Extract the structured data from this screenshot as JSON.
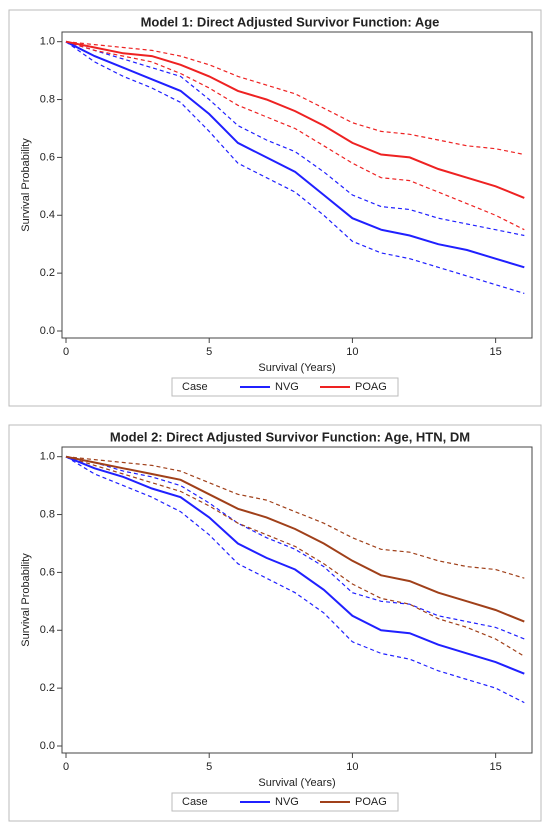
{
  "chart_data": [
    {
      "type": "line",
      "title": "Model 1: Direct Adjusted Survivor Function: Age",
      "x_label": "Survival (Years)",
      "y_label": "Survival Probability",
      "legend_title": "Case",
      "x": [
        0,
        1,
        2,
        3,
        4,
        5,
        6,
        7,
        8,
        9,
        10,
        11,
        12,
        13,
        14,
        15,
        16
      ],
      "xlim": [
        0,
        16.2
      ],
      "xticks": [
        0,
        5,
        10,
        15
      ],
      "ylim": [
        0,
        1.03
      ],
      "yticks": [
        {
          "value": 0,
          "label": "0.0"
        },
        0.2,
        0.4,
        0.6,
        0.8,
        {
          "value": 1,
          "label": "1.0"
        }
      ],
      "series": [
        {
          "color": "#2020ff",
          "dashed": true,
          "values": [
            1.0,
            0.97,
            0.94,
            0.91,
            0.88,
            0.8,
            0.71,
            0.66,
            0.62,
            0.55,
            0.47,
            0.43,
            0.42,
            0.39,
            0.37,
            0.35,
            0.33
          ]
        },
        {
          "color": "#2020ff",
          "dashed": true,
          "values": [
            1.0,
            0.93,
            0.88,
            0.84,
            0.79,
            0.69,
            0.58,
            0.53,
            0.48,
            0.4,
            0.31,
            0.27,
            0.25,
            0.22,
            0.19,
            0.16,
            0.13
          ]
        },
        {
          "color": "#ee2222",
          "dashed": true,
          "values": [
            1.0,
            0.99,
            0.98,
            0.97,
            0.95,
            0.92,
            0.88,
            0.85,
            0.82,
            0.77,
            0.72,
            0.69,
            0.68,
            0.66,
            0.64,
            0.63,
            0.61
          ]
        },
        {
          "color": "#ee2222",
          "dashed": true,
          "values": [
            1.0,
            0.97,
            0.95,
            0.93,
            0.89,
            0.84,
            0.78,
            0.74,
            0.7,
            0.64,
            0.58,
            0.53,
            0.52,
            0.48,
            0.44,
            0.4,
            0.35
          ]
        },
        {
          "name": "NVG",
          "color": "#2020ff",
          "values": [
            1.0,
            0.95,
            0.91,
            0.87,
            0.83,
            0.75,
            0.65,
            0.6,
            0.55,
            0.47,
            0.39,
            0.35,
            0.33,
            0.3,
            0.28,
            0.25,
            0.22
          ]
        },
        {
          "name": "POAG",
          "color": "#ee2222",
          "values": [
            1.0,
            0.98,
            0.96,
            0.95,
            0.92,
            0.88,
            0.83,
            0.8,
            0.76,
            0.71,
            0.65,
            0.61,
            0.6,
            0.56,
            0.53,
            0.5,
            0.46
          ]
        }
      ]
    },
    {
      "type": "line",
      "title": "Model 2: Direct Adjusted Survivor Function: Age, HTN, DM",
      "x_label": "Survival (Years)",
      "y_label": "Survival Probability",
      "legend_title": "Case",
      "x": [
        0,
        1,
        2,
        3,
        4,
        5,
        6,
        7,
        8,
        9,
        10,
        11,
        12,
        13,
        14,
        15,
        16
      ],
      "xlim": [
        0,
        16.2
      ],
      "xticks": [
        0,
        5,
        10,
        15
      ],
      "ylim": [
        0,
        1.03
      ],
      "yticks": [
        {
          "value": 0,
          "label": "0.0"
        },
        0.2,
        0.4,
        0.6,
        0.8,
        {
          "value": 1,
          "label": "1.0"
        }
      ],
      "series": [
        {
          "color": "#2020ff",
          "dashed": true,
          "values": [
            1.0,
            0.98,
            0.95,
            0.93,
            0.9,
            0.84,
            0.77,
            0.72,
            0.68,
            0.62,
            0.53,
            0.5,
            0.49,
            0.45,
            0.43,
            0.41,
            0.37
          ]
        },
        {
          "color": "#2020ff",
          "dashed": true,
          "values": [
            1.0,
            0.94,
            0.9,
            0.86,
            0.81,
            0.73,
            0.63,
            0.58,
            0.53,
            0.46,
            0.36,
            0.32,
            0.3,
            0.26,
            0.23,
            0.2,
            0.15
          ]
        },
        {
          "color": "#a0401a",
          "dashed": true,
          "values": [
            1.0,
            0.99,
            0.98,
            0.97,
            0.95,
            0.91,
            0.87,
            0.85,
            0.81,
            0.77,
            0.72,
            0.68,
            0.67,
            0.64,
            0.62,
            0.61,
            0.58
          ]
        },
        {
          "color": "#a0401a",
          "dashed": true,
          "values": [
            1.0,
            0.97,
            0.94,
            0.91,
            0.88,
            0.83,
            0.77,
            0.73,
            0.69,
            0.63,
            0.56,
            0.51,
            0.49,
            0.44,
            0.41,
            0.37,
            0.31
          ]
        },
        {
          "name": "NVG",
          "color": "#2020ff",
          "values": [
            1.0,
            0.96,
            0.93,
            0.89,
            0.86,
            0.79,
            0.7,
            0.65,
            0.61,
            0.54,
            0.45,
            0.4,
            0.39,
            0.35,
            0.32,
            0.29,
            0.25
          ]
        },
        {
          "name": "POAG",
          "color": "#a0401a",
          "values": [
            1.0,
            0.98,
            0.96,
            0.94,
            0.92,
            0.87,
            0.82,
            0.79,
            0.75,
            0.7,
            0.64,
            0.59,
            0.57,
            0.53,
            0.5,
            0.47,
            0.43
          ]
        }
      ]
    }
  ]
}
